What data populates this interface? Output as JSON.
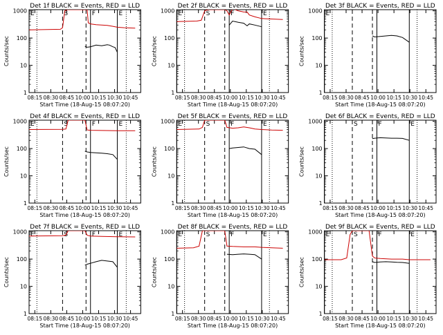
{
  "figure": {
    "background": "#ffffff",
    "axis_color": "#000000",
    "events_color": "#000000",
    "lld_color": "#cc0000"
  },
  "chart_data": [
    {
      "type": "line",
      "title": "Det 1f BLACK = Events, RED = LLD",
      "xlabel": "Start Time (18-Aug-15 08:07:20)",
      "ylabel": "Counts/sec",
      "yscale": "log",
      "ylim": [
        1,
        1100
      ],
      "xlim": [
        "08:07:20",
        "10:47:00"
      ],
      "xticks": [
        "08:15",
        "08:30",
        "08:45",
        "10:00",
        "10:15",
        "10:30",
        "10:45"
      ],
      "yticks": [
        "1",
        "10",
        "100",
        "1000"
      ],
      "markers": [
        {
          "label": "E",
          "x": 0.0,
          "style": "solid"
        },
        {
          "label": "",
          "x": 0.07,
          "style": "dotted"
        },
        {
          "label": "S",
          "x": 0.3,
          "style": "dashed"
        },
        {
          "label": "",
          "x": 0.51,
          "style": "dashed"
        },
        {
          "label": "F",
          "x": 0.55,
          "style": "solid"
        },
        {
          "label": "E",
          "x": 0.79,
          "style": "solid"
        },
        {
          "label": "",
          "x": 0.87,
          "style": "dotted"
        }
      ],
      "series": [
        {
          "name": "LLD",
          "color": "#cc0000",
          "x": [
            0,
            0.28,
            0.3,
            0.32,
            0.34,
            0.5,
            0.52,
            0.53,
            0.55,
            0.6,
            0.65,
            0.7,
            0.75,
            0.79,
            0.85,
            0.95
          ],
          "y": [
            200,
            210,
            240,
            1000,
            1100,
            1100,
            1100,
            360,
            330,
            310,
            300,
            290,
            270,
            250,
            240,
            230
          ]
        },
        {
          "name": "Events",
          "color": "#000000",
          "x": [
            0.5,
            0.52,
            0.55,
            0.6,
            0.65,
            0.7,
            0.72,
            0.75,
            0.77,
            0.79
          ],
          "y": [
            50,
            46,
            48,
            55,
            52,
            57,
            55,
            48,
            45,
            30
          ]
        }
      ]
    },
    {
      "type": "line",
      "title": "Det 2f BLACK = Events, RED = LLD",
      "xlabel": "Start Time (18-Aug-15 08:07:20)",
      "ylabel": "Counts/sec",
      "yscale": "log",
      "ylim": [
        1,
        1100
      ],
      "xlim": [
        "08:07:20",
        "10:47:00"
      ],
      "xticks": [
        "08:15",
        "08:30",
        "08:45",
        "10:00",
        "10:15",
        "10:30",
        "10:45"
      ],
      "yticks": [
        "1",
        "10",
        "100",
        "1000"
      ],
      "markers": [
        {
          "label": "E",
          "x": 0.0,
          "style": "solid"
        },
        {
          "label": "",
          "x": 0.07,
          "style": "dotted"
        },
        {
          "label": "S",
          "x": 0.25,
          "style": "dashed"
        },
        {
          "label": "",
          "x": 0.43,
          "style": "dashed"
        },
        {
          "label": "F",
          "x": 0.47,
          "style": "solid"
        },
        {
          "label": "E",
          "x": 0.76,
          "style": "solid"
        },
        {
          "label": "",
          "x": 0.83,
          "style": "dotted"
        }
      ],
      "series": [
        {
          "name": "LLD",
          "color": "#cc0000",
          "x": [
            0,
            0.18,
            0.22,
            0.25,
            0.28,
            0.4,
            0.43,
            0.45,
            0.47,
            0.5,
            0.55,
            0.6,
            0.63,
            0.65,
            0.7,
            0.76,
            0.85,
            0.95
          ],
          "y": [
            400,
            420,
            450,
            1000,
            1100,
            1100,
            1100,
            1000,
            700,
            1200,
            1000,
            900,
            900,
            700,
            600,
            520,
            500,
            480
          ]
        },
        {
          "name": "Events",
          "color": "#000000",
          "x": [
            0.47,
            0.5,
            0.55,
            0.6,
            0.63,
            0.65,
            0.7,
            0.76
          ],
          "y": [
            300,
            420,
            380,
            350,
            280,
            330,
            300,
            260
          ]
        }
      ]
    },
    {
      "type": "line",
      "title": "Det 3f BLACK = Events, RED = LLD",
      "xlabel": "Start Time (18-Aug-15 08:07:20)",
      "ylabel": "Counts/sec",
      "yscale": "log",
      "ylim": [
        1,
        1100
      ],
      "xlim": [
        "08:07:20",
        "10:47:00"
      ],
      "xticks": [
        "08:15",
        "08:30",
        "08:45",
        "10:00",
        "10:15",
        "10:30",
        "10:45"
      ],
      "yticks": [
        "1",
        "10",
        "100",
        "1000"
      ],
      "markers": [
        {
          "label": "E",
          "x": 0.0,
          "style": "solid"
        },
        {
          "label": "",
          "x": 0.07,
          "style": "dotted"
        },
        {
          "label": "",
          "x": 0.25,
          "style": "dashed"
        },
        {
          "label": "",
          "x": 0.43,
          "style": "dashed"
        },
        {
          "label": "",
          "x": 0.47,
          "style": "solid"
        },
        {
          "label": "",
          "x": 0.76,
          "style": "solid"
        },
        {
          "label": "",
          "x": 0.83,
          "style": "dotted"
        }
      ],
      "series": [
        {
          "name": "Events",
          "color": "#000000",
          "x": [
            0.43,
            0.45,
            0.5,
            0.55,
            0.6,
            0.65,
            0.7,
            0.76
          ],
          "y": [
            120,
            110,
            115,
            120,
            125,
            120,
            105,
            70
          ]
        }
      ]
    },
    {
      "type": "line",
      "title": "Det 4f BLACK = Events, RED = LLD",
      "xlabel": "Start Time (18-Aug-15 08:07:20)",
      "ylabel": "Counts/sec",
      "yscale": "log",
      "ylim": [
        1,
        1100
      ],
      "xlim": [
        "08:07:20",
        "10:47:00"
      ],
      "xticks": [
        "08:15",
        "08:30",
        "08:45",
        "10:00",
        "10:15",
        "10:30",
        "10:45"
      ],
      "yticks": [
        "1",
        "10",
        "100",
        "1000"
      ],
      "markers": [
        {
          "label": "E",
          "x": 0.0,
          "style": "solid"
        },
        {
          "label": "",
          "x": 0.07,
          "style": "dotted"
        },
        {
          "label": "S",
          "x": 0.3,
          "style": "dashed"
        },
        {
          "label": "",
          "x": 0.51,
          "style": "dashed"
        },
        {
          "label": "F",
          "x": 0.55,
          "style": "solid"
        },
        {
          "label": "E",
          "x": 0.79,
          "style": "solid"
        },
        {
          "label": "",
          "x": 0.87,
          "style": "dotted"
        }
      ],
      "series": [
        {
          "name": "LLD",
          "color": "#cc0000",
          "x": [
            0,
            0.3,
            0.33,
            0.35,
            0.5,
            0.52,
            0.55,
            0.65,
            0.79,
            0.95
          ],
          "y": [
            500,
            510,
            520,
            1100,
            1100,
            480,
            470,
            460,
            450,
            450
          ]
        },
        {
          "name": "Events",
          "color": "#000000",
          "x": [
            0.5,
            0.52,
            0.55,
            0.6,
            0.65,
            0.7,
            0.75,
            0.79
          ],
          "y": [
            80,
            75,
            72,
            70,
            68,
            65,
            60,
            40
          ]
        }
      ]
    },
    {
      "type": "line",
      "title": "Det 5f BLACK = Events, RED = LLD",
      "xlabel": "Start Time (18-Aug-15 08:07:20)",
      "ylabel": "Counts/sec",
      "yscale": "log",
      "ylim": [
        1,
        1100
      ],
      "xlim": [
        "08:07:20",
        "10:47:00"
      ],
      "xticks": [
        "08:15",
        "08:30",
        "08:45",
        "10:00",
        "10:15",
        "10:30",
        "10:45"
      ],
      "yticks": [
        "1",
        "10",
        "100",
        "1000"
      ],
      "markers": [
        {
          "label": "E",
          "x": 0.0,
          "style": "solid"
        },
        {
          "label": "",
          "x": 0.07,
          "style": "dotted"
        },
        {
          "label": "S",
          "x": 0.25,
          "style": "dashed"
        },
        {
          "label": "",
          "x": 0.43,
          "style": "dashed"
        },
        {
          "label": "F",
          "x": 0.47,
          "style": "solid"
        },
        {
          "label": "E",
          "x": 0.76,
          "style": "solid"
        },
        {
          "label": "",
          "x": 0.83,
          "style": "dotted"
        }
      ],
      "series": [
        {
          "name": "LLD",
          "color": "#cc0000",
          "x": [
            0,
            0.2,
            0.23,
            0.25,
            0.43,
            0.45,
            0.5,
            0.55,
            0.6,
            0.65,
            0.7,
            0.76,
            0.85,
            0.95
          ],
          "y": [
            500,
            520,
            600,
            1100,
            1100,
            600,
            560,
            580,
            620,
            580,
            520,
            500,
            480,
            470
          ]
        },
        {
          "name": "Events",
          "color": "#000000",
          "x": [
            0.47,
            0.5,
            0.55,
            0.6,
            0.65,
            0.7,
            0.76
          ],
          "y": [
            100,
            105,
            110,
            115,
            100,
            95,
            60
          ]
        }
      ]
    },
    {
      "type": "line",
      "title": "Det 6f BLACK = Events, RED = LLD",
      "xlabel": "Start Time (18-Aug-15 08:07:20)",
      "ylabel": "Counts/sec",
      "yscale": "log",
      "ylim": [
        1,
        1100
      ],
      "xlim": [
        "08:07:20",
        "10:47:00"
      ],
      "xticks": [
        "08:15",
        "08:30",
        "08:45",
        "10:00",
        "10:15",
        "10:30",
        "10:45"
      ],
      "yticks": [
        "1",
        "10",
        "100",
        "1000"
      ],
      "markers": [
        {
          "label": "",
          "x": 0.0,
          "style": "solid"
        },
        {
          "label": "",
          "x": 0.07,
          "style": "dotted"
        },
        {
          "label": "S",
          "x": 0.25,
          "style": "dashed"
        },
        {
          "label": "",
          "x": 0.43,
          "style": "dashed"
        },
        {
          "label": "F",
          "x": 0.47,
          "style": "solid"
        },
        {
          "label": "E",
          "x": 0.76,
          "style": "solid"
        },
        {
          "label": "",
          "x": 0.83,
          "style": "dotted"
        }
      ],
      "series": [
        {
          "name": "Events",
          "color": "#000000",
          "x": [
            0.43,
            0.45,
            0.5,
            0.55,
            0.6,
            0.65,
            0.7,
            0.76
          ],
          "y": [
            230,
            240,
            250,
            245,
            240,
            240,
            235,
            200
          ]
        }
      ]
    },
    {
      "type": "line",
      "title": "Det 7f BLACK = Events, RED = LLD",
      "xlabel": "Start Time (18-Aug-15 08:07:20)",
      "ylabel": "Counts/sec",
      "yscale": "log",
      "ylim": [
        1,
        1100
      ],
      "xlim": [
        "08:07:20",
        "10:47:00"
      ],
      "xticks": [
        "08:15",
        "08:30",
        "08:45",
        "10:00",
        "10:15",
        "10:30",
        "10:45"
      ],
      "yticks": [
        "1",
        "10",
        "100",
        "1000"
      ],
      "markers": [
        {
          "label": "E",
          "x": 0.0,
          "style": "solid"
        },
        {
          "label": "",
          "x": 0.07,
          "style": "dotted"
        },
        {
          "label": "S",
          "x": 0.3,
          "style": "dashed"
        },
        {
          "label": "",
          "x": 0.51,
          "style": "dashed"
        },
        {
          "label": "F",
          "x": 0.55,
          "style": "solid"
        },
        {
          "label": "E",
          "x": 0.79,
          "style": "solid"
        },
        {
          "label": "",
          "x": 0.87,
          "style": "dotted"
        }
      ],
      "series": [
        {
          "name": "LLD",
          "color": "#cc0000",
          "x": [
            0,
            0.3,
            0.33,
            0.35,
            0.5,
            0.52,
            0.55,
            0.65,
            0.79,
            0.95
          ],
          "y": [
            700,
            720,
            760,
            1100,
            1100,
            750,
            700,
            680,
            660,
            650
          ]
        },
        {
          "name": "Events",
          "color": "#000000",
          "x": [
            0.5,
            0.52,
            0.55,
            0.6,
            0.65,
            0.7,
            0.75,
            0.79
          ],
          "y": [
            60,
            65,
            70,
            80,
            90,
            85,
            80,
            50
          ]
        }
      ]
    },
    {
      "type": "line",
      "title": "Det 8f BLACK = Events, RED = LLD",
      "xlabel": "Start Time (18-Aug-15 08:07:20)",
      "ylabel": "Counts/sec",
      "yscale": "log",
      "ylim": [
        1,
        1100
      ],
      "xlim": [
        "08:07:20",
        "10:47:00"
      ],
      "xticks": [
        "08:15",
        "08:30",
        "08:45",
        "10:00",
        "10:15",
        "10:30",
        "10:45"
      ],
      "yticks": [
        "1",
        "10",
        "100",
        "1000"
      ],
      "markers": [
        {
          "label": "E",
          "x": 0.0,
          "style": "solid"
        },
        {
          "label": "",
          "x": 0.07,
          "style": "dotted"
        },
        {
          "label": "S",
          "x": 0.25,
          "style": "dashed"
        },
        {
          "label": "",
          "x": 0.43,
          "style": "dashed"
        },
        {
          "label": "F",
          "x": 0.47,
          "style": "solid"
        },
        {
          "label": "E",
          "x": 0.76,
          "style": "solid"
        },
        {
          "label": "",
          "x": 0.83,
          "style": "dotted"
        }
      ],
      "series": [
        {
          "name": "LLD",
          "color": "#cc0000",
          "x": [
            0,
            0.15,
            0.2,
            0.23,
            0.25,
            0.43,
            0.45,
            0.5,
            0.6,
            0.7,
            0.76,
            0.85,
            0.95
          ],
          "y": [
            250,
            260,
            300,
            1100,
            1100,
            1100,
            300,
            290,
            280,
            280,
            270,
            260,
            250
          ]
        },
        {
          "name": "Events",
          "color": "#000000",
          "x": [
            0.45,
            0.5,
            0.55,
            0.6,
            0.65,
            0.7,
            0.76
          ],
          "y": [
            150,
            145,
            150,
            155,
            150,
            145,
            100
          ]
        }
      ]
    },
    {
      "type": "line",
      "title": "Det 9f BLACK = Events, RED = LLD",
      "xlabel": "Start Time (18-Aug-15 08:07:20)",
      "ylabel": "Counts/sec",
      "yscale": "log",
      "ylim": [
        1,
        1100
      ],
      "xlim": [
        "08:07:20",
        "10:47:00"
      ],
      "xticks": [
        "08:15",
        "08:30",
        "08:45",
        "10:00",
        "10:15",
        "10:30",
        "10:45"
      ],
      "yticks": [
        "1",
        "10",
        "100",
        "1000"
      ],
      "markers": [
        {
          "label": "E",
          "x": 0.0,
          "style": "solid"
        },
        {
          "label": "",
          "x": 0.07,
          "style": "dotted"
        },
        {
          "label": "S",
          "x": 0.25,
          "style": "dashed"
        },
        {
          "label": "",
          "x": 0.43,
          "style": "dashed"
        },
        {
          "label": "F",
          "x": 0.47,
          "style": "solid"
        },
        {
          "label": "E",
          "x": 0.76,
          "style": "solid"
        },
        {
          "label": "",
          "x": 0.83,
          "style": "dotted"
        }
      ],
      "series": [
        {
          "name": "LLD",
          "color": "#cc0000",
          "x": [
            0,
            0.15,
            0.2,
            0.23,
            0.25,
            0.3,
            0.4,
            0.43,
            0.45,
            0.5,
            0.6,
            0.7,
            0.76,
            0.85,
            0.95
          ],
          "y": [
            95,
            95,
            110,
            800,
            1100,
            1100,
            1100,
            130,
            110,
            105,
            100,
            100,
            95,
            95,
            95
          ]
        },
        {
          "name": "Events",
          "color": "#000000",
          "x": [
            0.43,
            0.45,
            0.5,
            0.55,
            0.6,
            0.65,
            0.7,
            0.76
          ],
          "y": [
            80,
            75,
            78,
            80,
            78,
            76,
            75,
            70
          ]
        }
      ]
    }
  ]
}
